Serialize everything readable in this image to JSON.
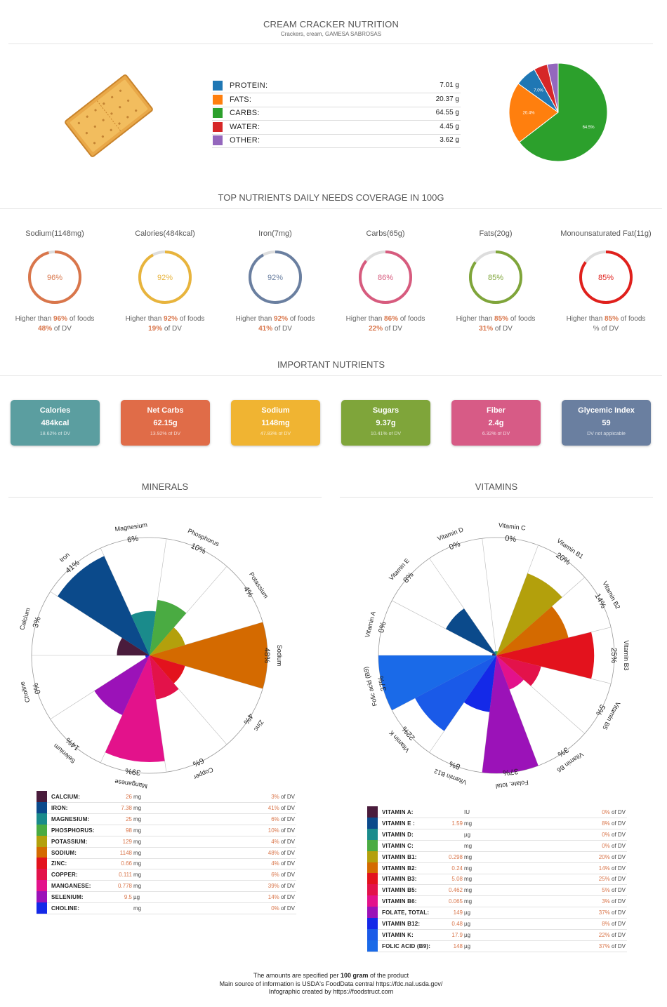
{
  "header": {
    "title": "CREAM CRACKER NUTRITION",
    "subtitle": "Crackers, cream, GAMESA SABROSAS"
  },
  "macros": [
    {
      "label": "PROTEIN:",
      "value": "7.01 g",
      "color": "#1f77b4",
      "amount": 7.01,
      "pct_label": "7.0%"
    },
    {
      "label": "FATS:",
      "value": "20.37 g",
      "color": "#ff7f0e",
      "amount": 20.37,
      "pct_label": "20.4%"
    },
    {
      "label": "CARBS:",
      "value": "64.55 g",
      "color": "#2ca02c",
      "amount": 64.55,
      "pct_label": "64.5%"
    },
    {
      "label": "WATER:",
      "value": "4.45 g",
      "color": "#d62728",
      "amount": 4.45,
      "pct_label": ""
    },
    {
      "label": "OTHER:",
      "value": "3.62 g",
      "color": "#9467bd",
      "amount": 3.62,
      "pct_label": ""
    }
  ],
  "coverage": {
    "title": "TOP NUTRIENTS DAILY NEEDS COVERAGE IN 100G",
    "items": [
      {
        "name": "Sodium(1148mg)",
        "pct": "96%",
        "pct_value": 96,
        "color": "#d9764b",
        "higher_pre": "Higher than ",
        "higher_val": "96%",
        "higher_post": " of foods",
        "dv_val": "48%",
        "dv_post": " of DV"
      },
      {
        "name": "Calories(484kcal)",
        "pct": "92%",
        "pct_value": 92,
        "color": "#e8b43c",
        "higher_pre": "Higher than ",
        "higher_val": "92%",
        "higher_post": " of foods",
        "dv_val": "19%",
        "dv_post": " of DV"
      },
      {
        "name": "Iron(7mg)",
        "pct": "92%",
        "pct_value": 92,
        "color": "#6a7fa0",
        "higher_pre": "Higher than ",
        "higher_val": "92%",
        "higher_post": " of foods",
        "dv_val": "41%",
        "dv_post": " of DV"
      },
      {
        "name": "Carbs(65g)",
        "pct": "86%",
        "pct_value": 86,
        "color": "#d75b7e",
        "higher_pre": "Higher than ",
        "higher_val": "86%",
        "higher_post": " of foods",
        "dv_val": "22%",
        "dv_post": " of DV"
      },
      {
        "name": "Fats(20g)",
        "pct": "85%",
        "pct_value": 85,
        "color": "#7fa53a",
        "higher_pre": "Higher than ",
        "higher_val": "85%",
        "higher_post": " of foods",
        "dv_val": "31%",
        "dv_post": " of DV"
      },
      {
        "name": "Monounsaturated Fat(11g)",
        "pct": "85%",
        "pct_value": 85,
        "color": "#e0201c",
        "higher_pre": "Higher than ",
        "higher_val": "85%",
        "higher_post": " of foods",
        "dv_val": "",
        "dv_post": "% of DV"
      }
    ]
  },
  "important": {
    "title": "IMPORTANT NUTRIENTS",
    "cards": [
      {
        "title": "Calories",
        "value": "484kcal",
        "sub": "18.62% of DV",
        "color": "#5b9ea0"
      },
      {
        "title": "Net Carbs",
        "value": "62.15g",
        "sub": "13.92% of DV",
        "color": "#e06c48"
      },
      {
        "title": "Sodium",
        "value": "1148mg",
        "sub": "47.83% of DV",
        "color": "#f0b432"
      },
      {
        "title": "Sugars",
        "value": "9.37g",
        "sub": "10.41% of DV",
        "color": "#7fa53a"
      },
      {
        "title": "Fiber",
        "value": "2.4g",
        "sub": "6.32% of DV",
        "color": "#d75b86"
      },
      {
        "title": "Glycemic Index",
        "value": "59",
        "sub": "DV not applicable",
        "color": "#6a7fa0"
      }
    ]
  },
  "minerals": {
    "title": "MINERALS",
    "chart_data": {
      "type": "polar-area",
      "title": "MINERALS",
      "categories": [
        "Calcium",
        "Iron",
        "Magnesium",
        "Phosphorus",
        "Potassium",
        "Sodium",
        "Zinc",
        "Copper",
        "Manganese",
        "Selenium",
        "Choline"
      ],
      "values": [
        3,
        41,
        6,
        10,
        4,
        48,
        4,
        6,
        39,
        14,
        0
      ],
      "labels": [
        "3%",
        "41%",
        "6%",
        "10%",
        "4%",
        "48%",
        "4%",
        "6%",
        "39%",
        "14%",
        "0%"
      ],
      "colors": [
        "#4a1c3c",
        "#0b4a8b",
        "#1a8b8b",
        "#4aab42",
        "#b3a00c",
        "#d46a00",
        "#e3121d",
        "#e3124a",
        "#e3128b",
        "#9b12b8",
        "#1429e8"
      ],
      "unit": "% of DV",
      "max": 48
    },
    "table": [
      {
        "name": "CALCIUM:",
        "value": "26",
        "unit": "mg",
        "dv": "3%",
        "dv_suffix": " of DV"
      },
      {
        "name": "IRON:",
        "value": "7.38",
        "unit": "mg",
        "dv": "41%",
        "dv_suffix": " of DV"
      },
      {
        "name": "MAGNESIUM:",
        "value": "25",
        "unit": "mg",
        "dv": "6%",
        "dv_suffix": " of DV"
      },
      {
        "name": "PHOSPHORUS:",
        "value": "98",
        "unit": "mg",
        "dv": "10%",
        "dv_suffix": " of DV"
      },
      {
        "name": "POTASSIUM:",
        "value": "129",
        "unit": "mg",
        "dv": "4%",
        "dv_suffix": " of DV"
      },
      {
        "name": "SODIUM:",
        "value": "1148",
        "unit": "mg",
        "dv": "48%",
        "dv_suffix": " of DV"
      },
      {
        "name": "ZINC:",
        "value": "0.66",
        "unit": "mg",
        "dv": "4%",
        "dv_suffix": " of DV"
      },
      {
        "name": "COPPER:",
        "value": "0.111",
        "unit": "mg",
        "dv": "6%",
        "dv_suffix": " of DV"
      },
      {
        "name": "MANGANESE:",
        "value": "0.778",
        "unit": "mg",
        "dv": "39%",
        "dv_suffix": " of DV"
      },
      {
        "name": "SELENIUM:",
        "value": "9.5",
        "unit": "µg",
        "dv": "14%",
        "dv_suffix": " of DV"
      },
      {
        "name": "CHOLINE:",
        "value": "",
        "unit": "mg",
        "dv": "0%",
        "dv_suffix": " of DV"
      }
    ]
  },
  "vitamins": {
    "title": "VITAMINS",
    "chart_data": {
      "type": "polar-area",
      "title": "VITAMINS",
      "categories": [
        "Vitamin A",
        "Vitamin E",
        "Vitamin D",
        "Vitamin C",
        "Vitamin B1",
        "Vitamin B2",
        "Vitamin B3",
        "Vitamin B5",
        "Vitamin B6",
        "Folate, total",
        "Vitamin B12",
        "Vitamin K",
        "Folic acid (B9)"
      ],
      "values": [
        0,
        8,
        0,
        0,
        20,
        14,
        25,
        5,
        3,
        37,
        8,
        22,
        37
      ],
      "labels": [
        "0%",
        "8%",
        "0%",
        "0%",
        "20%",
        "14%",
        "25%",
        "5%",
        "3%",
        "37%",
        "8%",
        "22%",
        "37%"
      ],
      "colors": [
        "#4a1c3c",
        "#0b4a8b",
        "#1a8b8b",
        "#4aab42",
        "#b3a00c",
        "#d46a00",
        "#e3121d",
        "#e3124a",
        "#e3128b",
        "#9b12b8",
        "#1429e8",
        "#1a5ae8",
        "#1a6ae8"
      ],
      "unit": "% of DV",
      "max": 37
    },
    "table": [
      {
        "name": "VITAMIN A:",
        "value": "",
        "unit": "IU",
        "dv": "0%",
        "dv_suffix": " of DV"
      },
      {
        "name": "VITAMIN E :",
        "value": "1.59",
        "unit": "mg",
        "dv": "8%",
        "dv_suffix": " of DV"
      },
      {
        "name": "VITAMIN D:",
        "value": "",
        "unit": "µg",
        "dv": "0%",
        "dv_suffix": " of DV"
      },
      {
        "name": "VITAMIN C:",
        "value": "",
        "unit": "mg",
        "dv": "0%",
        "dv_suffix": " of DV"
      },
      {
        "name": "VITAMIN B1:",
        "value": "0.298",
        "unit": "mg",
        "dv": "20%",
        "dv_suffix": " of DV"
      },
      {
        "name": "VITAMIN B2:",
        "value": "0.24",
        "unit": "mg",
        "dv": "14%",
        "dv_suffix": " of DV"
      },
      {
        "name": "VITAMIN B3:",
        "value": "5.08",
        "unit": "mg",
        "dv": "25%",
        "dv_suffix": " of DV"
      },
      {
        "name": "VITAMIN B5:",
        "value": "0.462",
        "unit": "mg",
        "dv": "5%",
        "dv_suffix": " of DV"
      },
      {
        "name": "VITAMIN B6:",
        "value": "0.065",
        "unit": "mg",
        "dv": "3%",
        "dv_suffix": " of DV"
      },
      {
        "name": "FOLATE, TOTAL:",
        "value": "149",
        "unit": "µg",
        "dv": "37%",
        "dv_suffix": " of DV"
      },
      {
        "name": "VITAMIN B12:",
        "value": "0.48",
        "unit": "µg",
        "dv": "8%",
        "dv_suffix": " of DV"
      },
      {
        "name": "VITAMIN K:",
        "value": "17.9",
        "unit": "µg",
        "dv": "22%",
        "dv_suffix": " of DV"
      },
      {
        "name": "FOLIC ACID (B9):",
        "value": "148",
        "unit": "µg",
        "dv": "37%",
        "dv_suffix": " of DV"
      }
    ]
  },
  "footer": {
    "line1_pre": "The amounts are specified per ",
    "line1_bold": "100 gram",
    "line1_post": " of the product",
    "line2": "Main source of information is USDA's FoodData central https://fdc.nal.usda.gov/",
    "line3": "Infographic created by https://foodstruct.com"
  }
}
